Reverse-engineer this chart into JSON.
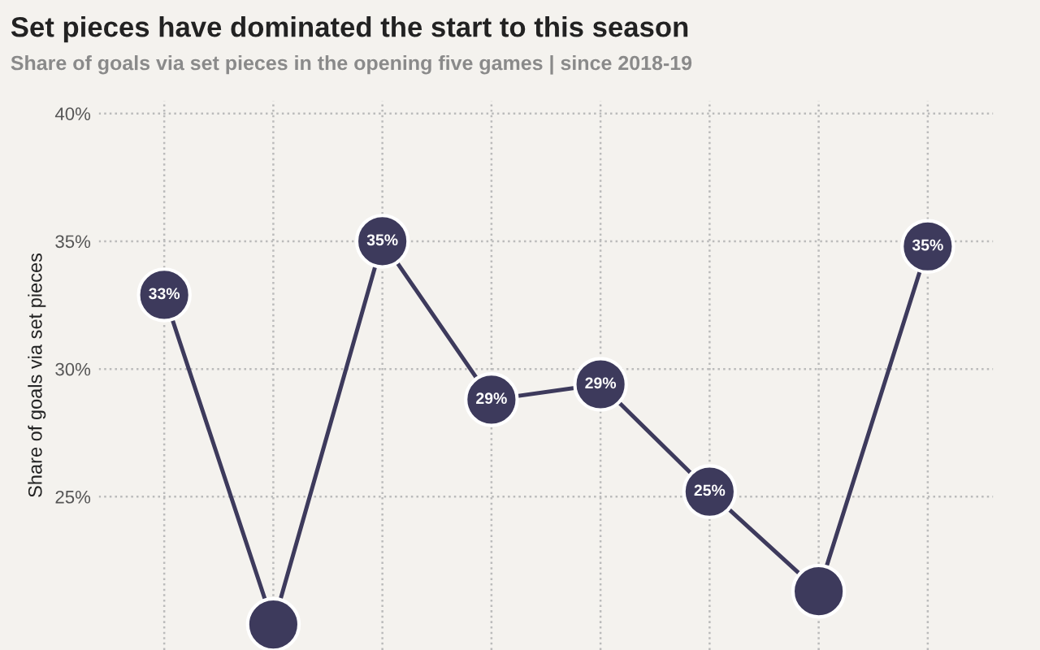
{
  "chart_data": {
    "type": "line",
    "title": "Set pieces have dominated the start to this season",
    "subtitle": "Share of goals via set pieces in the opening five games | since 2018-19",
    "ylabel": "Share of goals via set pieces",
    "categories": [
      null,
      null,
      null,
      null,
      null,
      null,
      null,
      null
    ],
    "series": [
      {
        "color": "#3d3a5c",
        "values": [
          32.9,
          20.0,
          35.0,
          28.8,
          29.4,
          25.2,
          21.3,
          34.8
        ],
        "value_labels": [
          "33%",
          null,
          "35%",
          "29%",
          "29%",
          "25%",
          null,
          "35%"
        ]
      }
    ],
    "ylim": [
      19,
      40.5
    ],
    "yticks": [
      {
        "value": 25,
        "label": "25%"
      },
      {
        "value": 30,
        "label": "30%"
      },
      {
        "value": 35,
        "label": "35%"
      },
      {
        "value": 40,
        "label": "40%"
      }
    ],
    "tick_labels": "y",
    "grid": true,
    "marker": "circle",
    "line_style": "solid"
  }
}
